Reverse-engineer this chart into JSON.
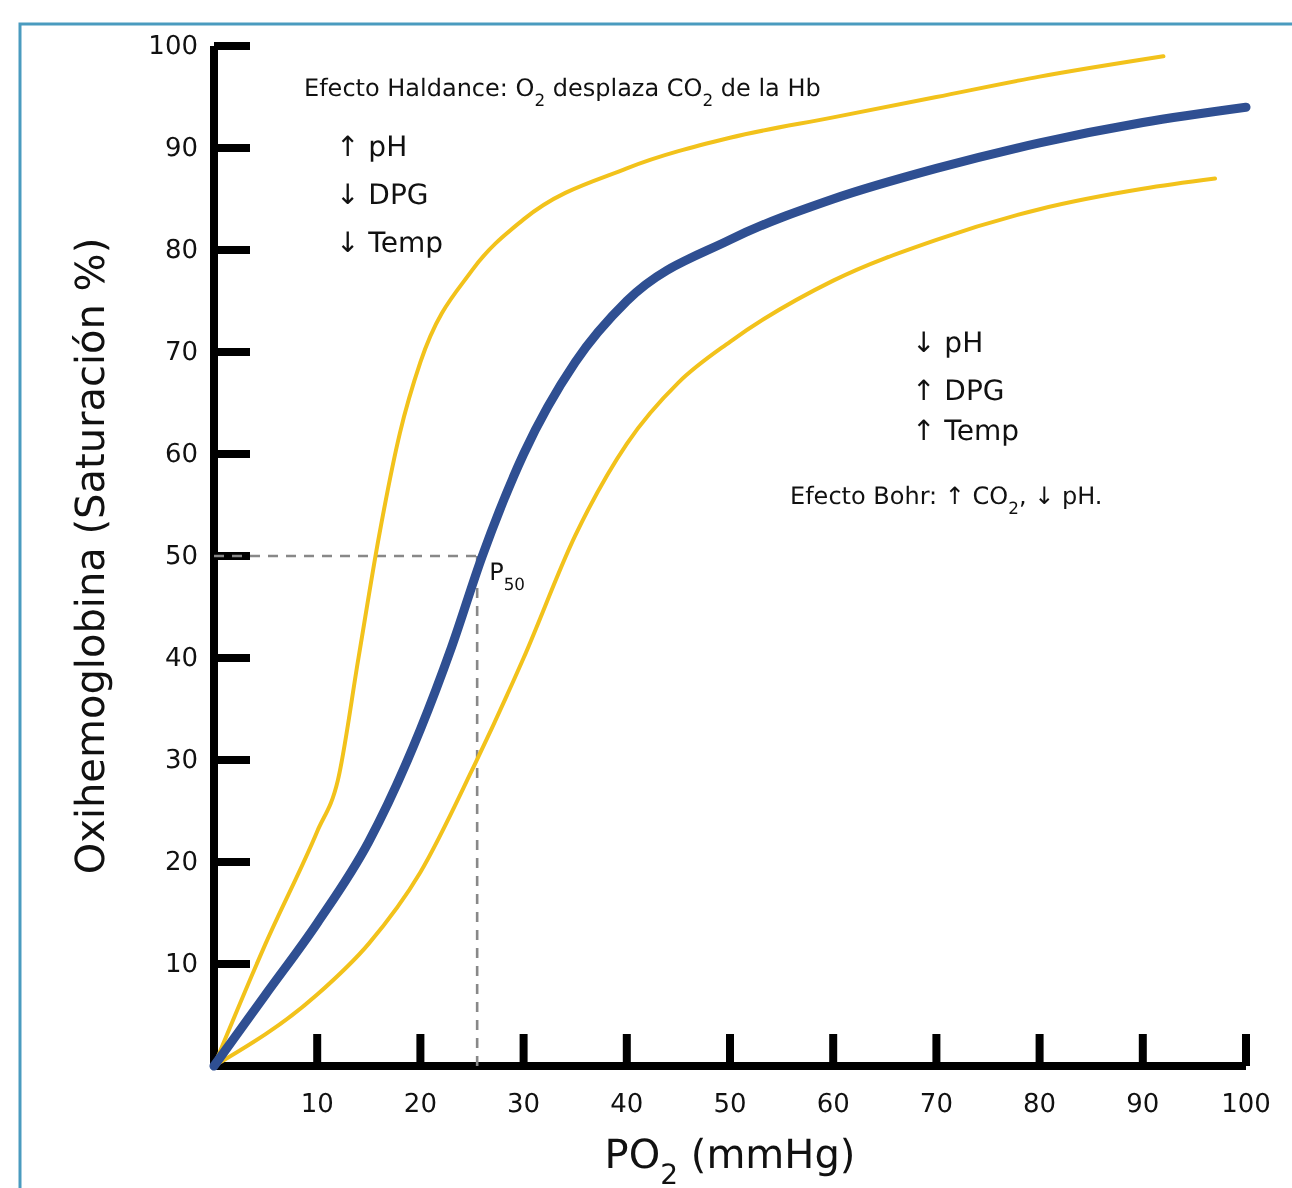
{
  "chart_data": {
    "type": "line",
    "xlabel": "PO$_{2}$ (mmHg)",
    "ylabel": "Oxihemoglobina (Saturación %)",
    "xlim": [
      0,
      100
    ],
    "ylim": [
      0,
      100
    ],
    "xticks": [
      10,
      20,
      30,
      40,
      50,
      60,
      70,
      80,
      90,
      100
    ],
    "yticks": [
      10,
      20,
      30,
      40,
      50,
      60,
      70,
      80,
      90,
      100
    ],
    "grid": false,
    "marker": "none",
    "series": [
      {
        "color": "#f2c21b",
        "x": [
          0,
          5,
          10,
          12,
          14,
          16,
          18,
          20,
          25,
          30,
          40,
          50,
          60,
          70,
          80,
          92
        ],
        "values": [
          0,
          12,
          23,
          28,
          40,
          52,
          62,
          69,
          78,
          83,
          88,
          91,
          93,
          95,
          97,
          99
        ]
      },
      {
        "color": "#f2c21b",
        "x": [
          0,
          10,
          15,
          20,
          25,
          30,
          35,
          40,
          45,
          50,
          60,
          70,
          80,
          90,
          97
        ],
        "values": [
          0,
          7,
          12,
          19,
          29,
          40,
          52,
          61,
          67,
          71,
          77,
          81,
          84,
          86,
          87
        ]
      },
      {
        "color": "#2f4f92",
        "x": [
          0,
          5,
          10,
          15,
          20,
          23,
          26,
          30,
          35,
          40,
          50,
          60,
          70,
          80,
          90,
          100
        ],
        "values": [
          0,
          7,
          14,
          22,
          33,
          41,
          50,
          60,
          69,
          75,
          81,
          85,
          88,
          90.5,
          92.5,
          94
        ]
      }
    ],
    "ref_lines": [
      {
        "axis": "y",
        "value": 50,
        "color": "#888888",
        "line_style": "dashed"
      },
      {
        "axis": "x",
        "value": 25.5,
        "label": "P$_{50}$",
        "color": "#888888",
        "line_style": "dashed"
      }
    ],
    "annotations": [
      "Efecto Haldance:  O$_{2}$ desplaza CO$_{2}$ de la Hb",
      "↑ pH",
      "↓ DPG",
      "↓ Temp",
      "↓ pH",
      "↑ DPG",
      "↑ Temp",
      "Efecto Bohr: ↑ CO$_{2}$, ↓ pH."
    ]
  }
}
